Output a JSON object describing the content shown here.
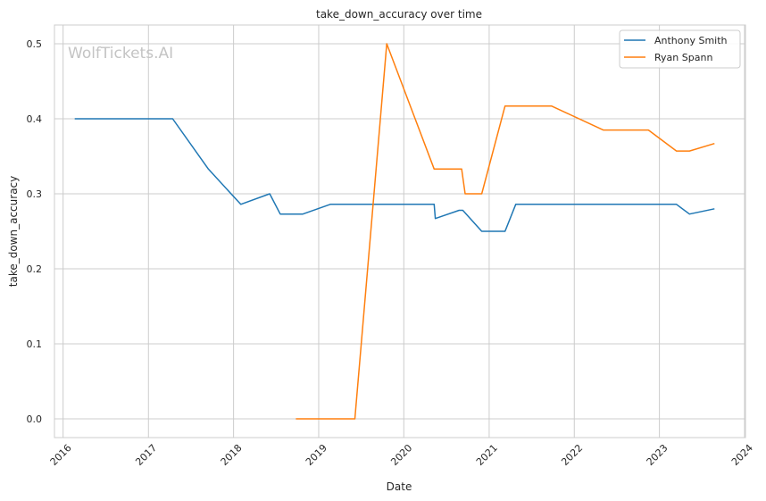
{
  "chart_data": {
    "type": "line",
    "title": "take_down_accuracy over time",
    "xlabel": "Date",
    "ylabel": "take_down_accuracy",
    "watermark": "WolfTickets.AI",
    "x_ticks": [
      "2016",
      "2017",
      "2018",
      "2019",
      "2020",
      "2021",
      "2022",
      "2023",
      "2024"
    ],
    "y_ticks": [
      "0.0",
      "0.1",
      "0.2",
      "0.3",
      "0.4",
      "0.5"
    ],
    "xlim": [
      "2015-11-25",
      "2024-01-05"
    ],
    "ylim": [
      -0.025,
      0.525
    ],
    "grid": true,
    "legend_position": "top-right",
    "series": [
      {
        "name": "Anthony Smith",
        "color": "#1f77b4",
        "points": [
          [
            "2016-02-20",
            0.4
          ],
          [
            "2017-04-15",
            0.4
          ],
          [
            "2017-09-15",
            0.333
          ],
          [
            "2018-02-01",
            0.286
          ],
          [
            "2018-06-05",
            0.3
          ],
          [
            "2018-07-20",
            0.273
          ],
          [
            "2018-10-25",
            0.273
          ],
          [
            "2019-02-20",
            0.286
          ],
          [
            "2020-05-10",
            0.286
          ],
          [
            "2020-05-15",
            0.267
          ],
          [
            "2020-08-25",
            0.278
          ],
          [
            "2020-09-10",
            0.278
          ],
          [
            "2020-11-30",
            0.25
          ],
          [
            "2021-03-10",
            0.25
          ],
          [
            "2021-04-25",
            0.286
          ],
          [
            "2023-03-15",
            0.286
          ],
          [
            "2023-05-10",
            0.273
          ],
          [
            "2023-08-25",
            0.28
          ]
        ]
      },
      {
        "name": "Ryan Spann",
        "color": "#ff7f0e",
        "points": [
          [
            "2018-09-25",
            0.0
          ],
          [
            "2019-06-05",
            0.0
          ],
          [
            "2019-10-20",
            0.5
          ],
          [
            "2020-05-10",
            0.333
          ],
          [
            "2020-09-05",
            0.333
          ],
          [
            "2020-09-20",
            0.3
          ],
          [
            "2020-11-30",
            0.3
          ],
          [
            "2021-03-10",
            0.417
          ],
          [
            "2021-09-25",
            0.417
          ],
          [
            "2022-05-05",
            0.385
          ],
          [
            "2022-11-15",
            0.385
          ],
          [
            "2023-03-15",
            0.357
          ],
          [
            "2023-05-10",
            0.357
          ],
          [
            "2023-08-25",
            0.367
          ]
        ]
      }
    ]
  }
}
